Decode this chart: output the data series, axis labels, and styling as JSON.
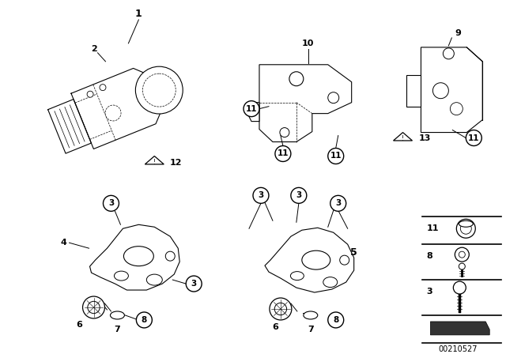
{
  "bg_color": "#ffffff",
  "part_number": "00210527",
  "fig_width": 6.4,
  "fig_height": 4.48,
  "dpi": 100,
  "lw": 0.8
}
